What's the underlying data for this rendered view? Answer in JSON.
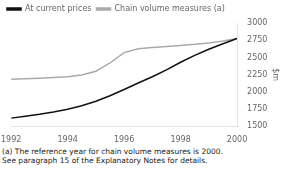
{
  "chart_data": {
    "type": "line",
    "ylabel": "$m",
    "annotations": [
      "(a) The reference year for chain volume measures is 2000.",
      "See paragraph 15 of the Explanatory Notes for details."
    ],
    "x": [
      1992,
      1992.5,
      1993,
      1993.5,
      1994,
      1994.5,
      1995,
      1995.5,
      1996,
      1996.5,
      1997,
      1997.5,
      1998,
      1998.5,
      1999,
      1999.5,
      2000
    ],
    "series": [
      {
        "name": "At current prices",
        "color": "#111111",
        "values": [
          1620,
          1648,
          1675,
          1710,
          1750,
          1800,
          1865,
          1945,
          2035,
          2130,
          2220,
          2320,
          2430,
          2530,
          2620,
          2700,
          2775
        ]
      },
      {
        "name": "Chain volume measures (a)",
        "color": "#aaaaaa",
        "values": [
          2185,
          2192,
          2200,
          2208,
          2220,
          2245,
          2300,
          2420,
          2570,
          2625,
          2645,
          2660,
          2675,
          2690,
          2710,
          2740,
          2775
        ]
      }
    ],
    "xlim": [
      1992,
      2000
    ],
    "xticks": [
      1992,
      1994,
      1996,
      1998,
      2000
    ],
    "ylim": [
      1500,
      3000
    ],
    "yticks": [
      1500,
      1750,
      2000,
      2250,
      2500,
      2750,
      3000
    ],
    "grid": false,
    "legend": "upper left"
  }
}
